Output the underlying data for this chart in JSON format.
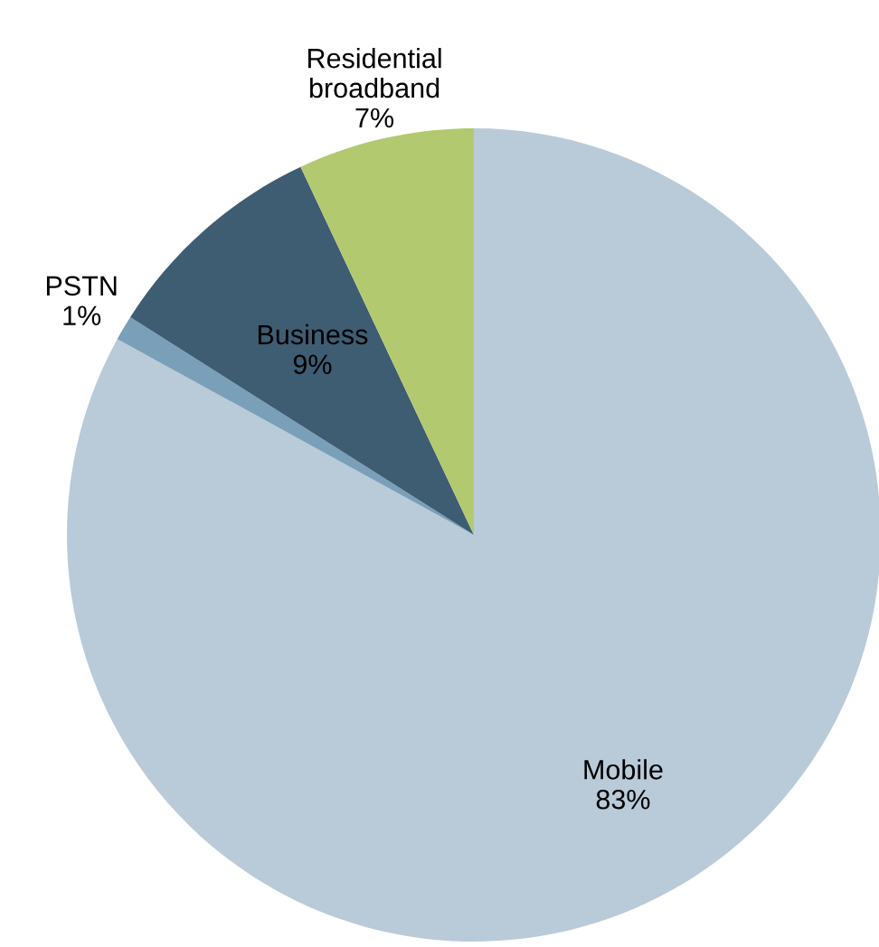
{
  "chart_data": {
    "type": "pie",
    "categories": [
      "Mobile",
      "PSTN",
      "Business",
      "Residential\nbroadband"
    ],
    "values": [
      83,
      1,
      9,
      7
    ],
    "colors": [
      "#b9cad9",
      "#7a9fb8",
      "#3e5c72",
      "#b3c96f"
    ],
    "value_labels": [
      "83%",
      "1%",
      "9%",
      "7%"
    ]
  }
}
